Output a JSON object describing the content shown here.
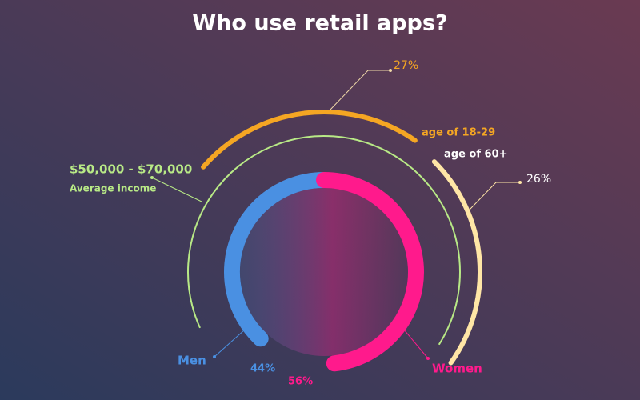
{
  "chart_data": {
    "type": "radial-infographic",
    "title": "Who use retail apps?",
    "series": [
      {
        "name": "Men",
        "color": "#4a90e2",
        "values": [
          44
        ],
        "value_labels": [
          "44%"
        ]
      },
      {
        "name": "Women",
        "color": "#ff1a8c",
        "values": [
          56
        ],
        "value_labels": [
          "56%"
        ]
      }
    ],
    "segments": [
      {
        "name": "age of 18-29",
        "value": 27,
        "value_label": "27%",
        "color": "#f5a623"
      },
      {
        "name": "age of 60+",
        "value": 26,
        "value_label": "26%",
        "color": "#ffe6a6"
      }
    ],
    "income": {
      "range": "$50,000 - $70,000",
      "label": "Average income",
      "color": "#b8e986"
    }
  }
}
